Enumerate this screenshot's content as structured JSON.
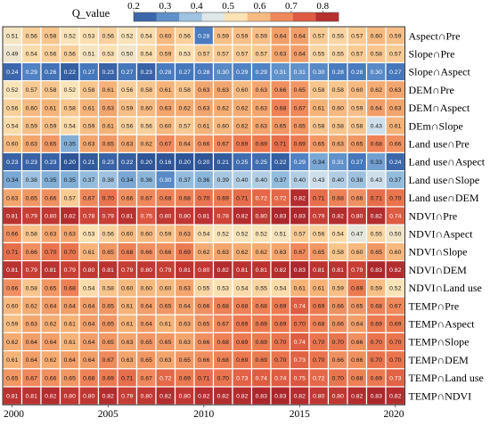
{
  "chart_data": {
    "type": "heatmap",
    "colorbar": {
      "label": "Q_value",
      "ticks": [
        0.2,
        0.3,
        0.4,
        0.5,
        0.6,
        0.7,
        0.8
      ],
      "range": [
        0.2,
        0.85
      ],
      "colors": [
        "#2f5597",
        "#4a7cc0",
        "#8cb7da",
        "#dbe7ef",
        "#fbe3b5",
        "#f6b67a",
        "#ed7c52",
        "#d64a3a",
        "#9e1c28"
      ]
    },
    "x": [
      2000,
      2001,
      2002,
      2003,
      2004,
      2005,
      2006,
      2007,
      2008,
      2009,
      2010,
      2011,
      2012,
      2013,
      2014,
      2015,
      2016,
      2017,
      2018,
      2019,
      2020
    ],
    "x_tick_labels": [
      "2000",
      "2005",
      "2010",
      "2015",
      "2020"
    ],
    "rows": [
      {
        "label": "Aspect∩Pre",
        "values": [
          0.51,
          0.56,
          0.58,
          0.52,
          0.53,
          0.56,
          0.52,
          0.54,
          0.6,
          0.56,
          0.28,
          0.59,
          0.59,
          0.59,
          0.64,
          0.64,
          0.57,
          0.55,
          0.57,
          0.6,
          0.59
        ]
      },
      {
        "label": "Slope∩Pre",
        "values": [
          0.49,
          0.54,
          0.56,
          0.56,
          0.51,
          0.53,
          0.5,
          0.54,
          0.59,
          0.53,
          0.57,
          0.57,
          0.57,
          0.57,
          0.63,
          0.64,
          0.55,
          0.55,
          0.57,
          0.58,
          0.57
        ]
      },
      {
        "label": "Slope∩Aspect",
        "values": [
          0.24,
          0.29,
          0.26,
          0.22,
          0.27,
          0.23,
          0.27,
          0.23,
          0.28,
          0.27,
          0.28,
          0.3,
          0.29,
          0.29,
          0.31,
          0.31,
          0.3,
          0.28,
          0.28,
          0.3,
          0.27
        ]
      },
      {
        "label": "DEM∩Pre",
        "values": [
          0.52,
          0.57,
          0.58,
          0.52,
          0.58,
          0.61,
          0.56,
          0.58,
          0.61,
          0.58,
          0.63,
          0.63,
          0.6,
          0.63,
          0.66,
          0.65,
          0.58,
          0.58,
          0.6,
          0.62,
          0.63
        ]
      },
      {
        "label": "DEM∩Aspect",
        "values": [
          0.56,
          0.6,
          0.61,
          0.58,
          0.61,
          0.63,
          0.59,
          0.6,
          0.63,
          0.62,
          0.63,
          0.62,
          0.62,
          0.63,
          0.68,
          0.67,
          0.61,
          0.6,
          0.59,
          0.64,
          0.63
        ]
      },
      {
        "label": "DEm∩Slope",
        "values": [
          0.54,
          0.59,
          0.59,
          0.54,
          0.59,
          0.61,
          0.56,
          0.56,
          0.6,
          0.57,
          0.61,
          0.6,
          0.62,
          0.63,
          0.65,
          0.65,
          0.58,
          0.58,
          0.58,
          0.43,
          0.61
        ]
      },
      {
        "label": "Land use∩Pre",
        "values": [
          0.6,
          0.63,
          0.65,
          0.35,
          0.63,
          0.65,
          0.63,
          0.62,
          0.67,
          0.64,
          0.66,
          0.67,
          0.69,
          0.69,
          0.71,
          0.69,
          0.65,
          0.63,
          0.65,
          0.68,
          0.66
        ]
      },
      {
        "label": "Land use∩Aspect",
        "values": [
          0.23,
          0.23,
          0.23,
          0.2,
          0.21,
          0.23,
          0.22,
          0.2,
          0.16,
          0.2,
          0.2,
          0.21,
          0.25,
          0.25,
          0.22,
          0.29,
          0.34,
          0.31,
          0.27,
          0.33,
          0.24
        ]
      },
      {
        "label": "Land use∩Slope",
        "values": [
          0.34,
          0.38,
          0.35,
          0.35,
          0.37,
          0.38,
          0.34,
          0.36,
          0.3,
          0.37,
          0.36,
          0.39,
          0.4,
          0.4,
          0.37,
          0.4,
          0.43,
          0.4,
          0.38,
          0.43,
          0.37
        ]
      },
      {
        "label": "Land use∩DEM",
        "values": [
          0.63,
          0.65,
          0.66,
          0.57,
          0.67,
          0.7,
          0.66,
          0.67,
          0.68,
          0.68,
          0.7,
          0.69,
          0.71,
          0.72,
          0.72,
          0.82,
          0.71,
          0.68,
          0.66,
          0.71,
          0.7
        ]
      },
      {
        "label": "NDVI∩Pre",
        "values": [
          0.81,
          0.79,
          0.8,
          0.82,
          0.78,
          0.79,
          0.81,
          0.75,
          0.8,
          0.8,
          0.81,
          0.78,
          0.82,
          0.8,
          0.83,
          0.83,
          0.79,
          0.82,
          0.8,
          0.82,
          0.74
        ]
      },
      {
        "label": "NDVI∩Aspect",
        "values": [
          0.66,
          0.58,
          0.63,
          0.63,
          0.53,
          0.56,
          0.6,
          0.6,
          0.59,
          0.63,
          0.54,
          0.52,
          0.52,
          0.52,
          0.51,
          0.57,
          0.56,
          0.54,
          0.47,
          0.55,
          0.5
        ]
      },
      {
        "label": "NDVI∩Slope",
        "values": [
          0.71,
          0.66,
          0.7,
          0.7,
          0.61,
          0.65,
          0.68,
          0.66,
          0.66,
          0.69,
          0.62,
          0.63,
          0.62,
          0.62,
          0.63,
          0.67,
          0.65,
          0.58,
          0.6,
          0.65,
          0.6
        ]
      },
      {
        "label": "NDVI∩DEM",
        "values": [
          0.81,
          0.79,
          0.81,
          0.79,
          0.8,
          0.81,
          0.79,
          0.8,
          0.79,
          0.81,
          0.8,
          0.82,
          0.81,
          0.81,
          0.82,
          0.83,
          0.81,
          0.81,
          0.79,
          0.83,
          0.82
        ]
      },
      {
        "label": "NDVI∩Land use",
        "values": [
          0.66,
          0.58,
          0.65,
          0.68,
          0.54,
          0.58,
          0.6,
          0.6,
          0.6,
          0.63,
          0.55,
          0.53,
          0.54,
          0.55,
          0.54,
          0.61,
          0.61,
          0.59,
          0.69,
          0.59,
          0.52
        ]
      },
      {
        "label": "TEMP∩Pre",
        "values": [
          0.6,
          0.62,
          0.64,
          0.64,
          0.64,
          0.65,
          0.61,
          0.64,
          0.65,
          0.64,
          0.66,
          0.68,
          0.68,
          0.68,
          0.69,
          0.74,
          0.69,
          0.66,
          0.65,
          0.68,
          0.67
        ]
      },
      {
        "label": "TEMP∩Aspect",
        "values": [
          0.59,
          0.63,
          0.62,
          0.61,
          0.64,
          0.65,
          0.61,
          0.64,
          0.61,
          0.63,
          0.65,
          0.67,
          0.69,
          0.69,
          0.69,
          0.7,
          0.68,
          0.66,
          0.64,
          0.69,
          0.69
        ]
      },
      {
        "label": "TEMP∩Slope",
        "values": [
          0.62,
          0.64,
          0.64,
          0.61,
          0.64,
          0.65,
          0.63,
          0.65,
          0.65,
          0.63,
          0.66,
          0.68,
          0.69,
          0.69,
          0.7,
          0.74,
          0.7,
          0.7,
          0.66,
          0.7,
          0.7
        ]
      },
      {
        "label": "TEMP∩DEM",
        "values": [
          0.61,
          0.64,
          0.62,
          0.64,
          0.64,
          0.67,
          0.63,
          0.65,
          0.63,
          0.65,
          0.66,
          0.68,
          0.69,
          0.69,
          0.7,
          0.73,
          0.7,
          0.66,
          0.66,
          0.7,
          0.7
        ]
      },
      {
        "label": "TEMP∩Land use",
        "values": [
          0.65,
          0.67,
          0.66,
          0.65,
          0.68,
          0.69,
          0.71,
          0.67,
          0.72,
          0.69,
          0.71,
          0.7,
          0.73,
          0.74,
          0.74,
          0.75,
          0.72,
          0.7,
          0.68,
          0.69,
          0.73
        ]
      },
      {
        "label": "TEMP∩NDVI",
        "values": [
          0.81,
          0.81,
          0.82,
          0.8,
          0.8,
          0.82,
          0.79,
          0.8,
          0.82,
          0.8,
          0.82,
          0.82,
          0.82,
          0.83,
          0.83,
          0.82,
          0.8,
          0.8,
          0.82,
          0.83,
          0.82
        ]
      }
    ]
  }
}
